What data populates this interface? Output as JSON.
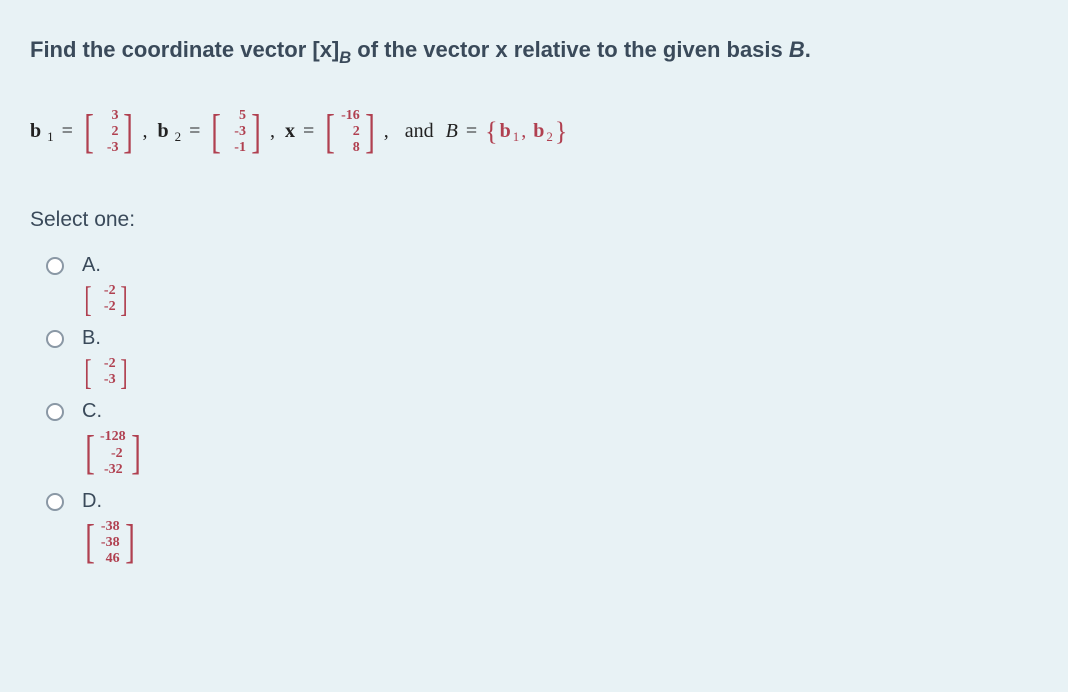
{
  "title": {
    "pre": "Find the coordinate vector [x]",
    "sub": "B",
    "mid": " of the vector x relative to the given basis ",
    "ital": "B",
    "end": "."
  },
  "equation": {
    "b1_label": "b",
    "b1_sub": "1",
    "b1": [
      "3",
      "2",
      "-3"
    ],
    "b2_label": "b",
    "b2_sub": "2",
    "b2": [
      "5",
      "-3",
      "-1"
    ],
    "x_label": "x",
    "x": [
      "-16",
      "2",
      "8"
    ],
    "and_text": "and",
    "B_label": "B",
    "basis_b1": "b",
    "basis_b1_sub": "1",
    "basis_b2": "b",
    "basis_b2_sub": "2",
    "eq": "="
  },
  "select_label": "Select one:",
  "options": [
    {
      "letter": "A.",
      "matrix": [
        "-2",
        "-2"
      ]
    },
    {
      "letter": "B.",
      "matrix": [
        "-2",
        "-3"
      ]
    },
    {
      "letter": "C.",
      "matrix": [
        "-128",
        "-2",
        "-32"
      ]
    },
    {
      "letter": "D.",
      "matrix": [
        "-38",
        "-38",
        "46"
      ]
    }
  ],
  "colors": {
    "bg": "#e8f2f5",
    "text_heading": "#3a4a5a",
    "math_color": "#b04050"
  }
}
